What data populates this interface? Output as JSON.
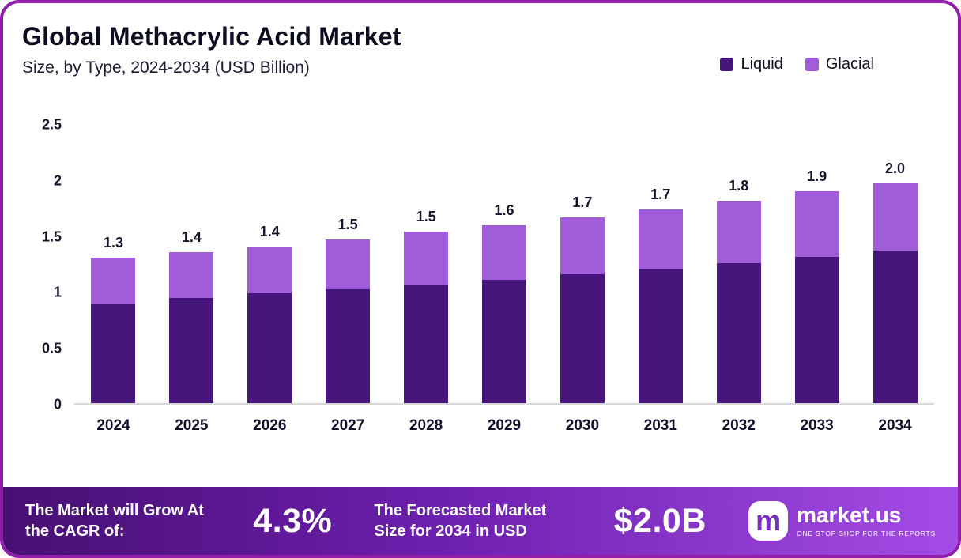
{
  "colors": {
    "liquid": "#46167c",
    "glacial": "#a05cd9",
    "frame_border": "#911dab",
    "footer_gradient_start": "#470f72",
    "footer_gradient_end": "#a44ce6",
    "brand_purple": "#7b2fbf",
    "axis_line": "#d8d8d8"
  },
  "chart_data": {
    "type": "bar",
    "stacked": true,
    "title": "Global Methacrylic Acid Market",
    "subtitle": "Size, by Type, 2024-2034 (USD Billion)",
    "grid": false,
    "legend_position": "top-right",
    "categories": [
      "2024",
      "2025",
      "2026",
      "2027",
      "2028",
      "2029",
      "2030",
      "2031",
      "2032",
      "2033",
      "2034"
    ],
    "series": [
      {
        "name": "Liquid",
        "color": "#46167c",
        "values": [
          0.89,
          0.94,
          0.98,
          1.02,
          1.06,
          1.1,
          1.15,
          1.2,
          1.25,
          1.31,
          1.36
        ]
      },
      {
        "name": "Glacial",
        "color": "#a05cd9",
        "values": [
          0.41,
          0.41,
          0.42,
          0.44,
          0.47,
          0.49,
          0.51,
          0.53,
          0.56,
          0.58,
          0.6
        ]
      }
    ],
    "total_labels": [
      "1.3",
      "1.4",
      "1.4",
      "1.5",
      "1.5",
      "1.6",
      "1.7",
      "1.7",
      "1.8",
      "1.9",
      "2.0"
    ],
    "ylim": [
      0,
      2.5
    ],
    "yticks": [
      0,
      0.5,
      1,
      1.5,
      2,
      2.5
    ],
    "ytick_labels": [
      "0",
      "0.5",
      "1",
      "1.5",
      "2",
      "2.5"
    ],
    "xlabel": "",
    "ylabel": ""
  },
  "footer": {
    "cagr_text": "The Market will Grow At the CAGR of:",
    "cagr_value": "4.3%",
    "forecast_text": "The Forecasted Market Size for 2034 in USD",
    "forecast_value": "$2.0B",
    "brand": {
      "icon_letter": "m",
      "name": "market.us",
      "tagline": "One Stop Shop For The Reports"
    }
  }
}
